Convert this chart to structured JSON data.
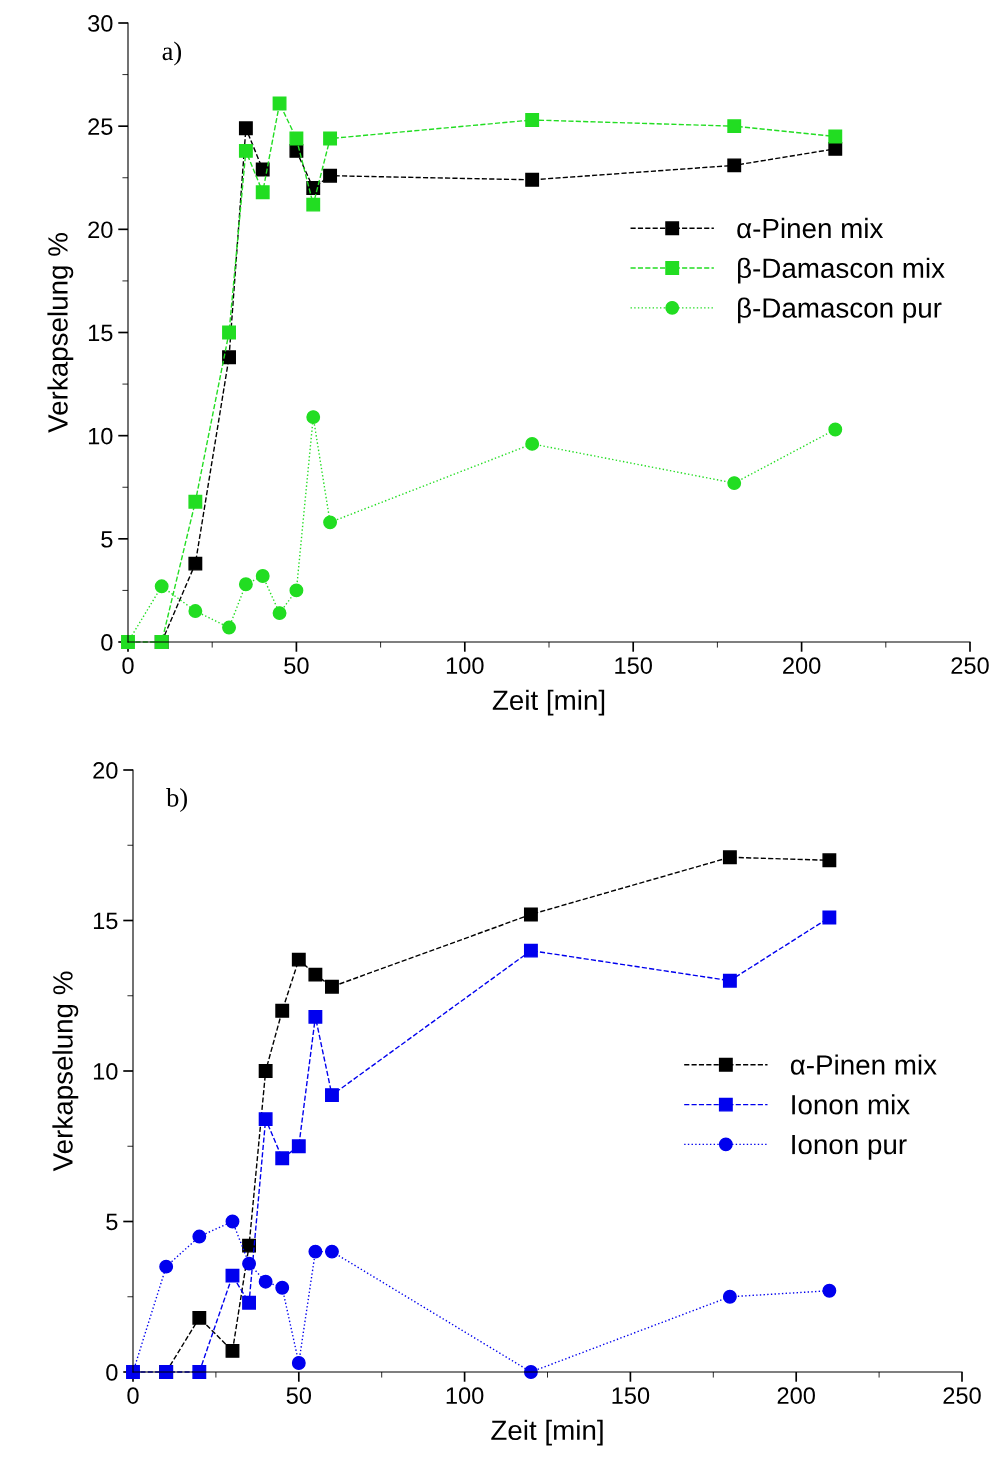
{
  "chart_data": [
    {
      "type": "line",
      "xlabel": "Zeit [min]",
      "ylabel": "Verkapselung %",
      "annotations": [
        "a)"
      ],
      "xlim": [
        0,
        250
      ],
      "xticks": [
        0,
        50,
        100,
        150,
        200,
        250
      ],
      "ylim": [
        0,
        30
      ],
      "yticks": [
        0,
        5,
        10,
        15,
        20,
        25,
        30
      ],
      "grid": false,
      "legend": "right",
      "series": [
        {
          "name": "α-Pinen mix",
          "color": "#000000",
          "marker": "square",
          "line_style": "dashed",
          "x": [
            10,
            20,
            30,
            35,
            40,
            45,
            50,
            55,
            60,
            120,
            180,
            210
          ],
          "values": [
            0,
            3.8,
            13.8,
            24.9,
            22.9,
            null,
            23.8,
            22.0,
            22.6,
            22.4,
            23.1,
            23.9
          ]
        },
        {
          "name": "β-Damascon mix",
          "color": "#22dd22",
          "marker": "square",
          "line_style": "dashed",
          "x": [
            0,
            10,
            20,
            30,
            35,
            40,
            45,
            50,
            55,
            60,
            120,
            180,
            210
          ],
          "values": [
            0,
            0,
            6.8,
            15,
            23.8,
            21.8,
            26.1,
            24.4,
            21.2,
            24.4,
            25.3,
            25.0,
            24.5
          ]
        },
        {
          "name": "β-Damascon pur",
          "color": "#22dd22",
          "marker": "circle",
          "line_style": "dotted",
          "x": [
            0,
            10,
            20,
            30,
            35,
            40,
            45,
            50,
            55,
            60,
            120,
            180,
            210
          ],
          "values": [
            0,
            2.7,
            1.5,
            0.7,
            2.8,
            3.2,
            1.4,
            2.5,
            10.9,
            5.8,
            9.6,
            7.7,
            10.3
          ]
        }
      ]
    },
    {
      "type": "line",
      "xlabel": "Zeit [min]",
      "ylabel": "Verkapselung %",
      "annotations": [
        "b)"
      ],
      "xlim": [
        0,
        250
      ],
      "xticks": [
        0,
        50,
        100,
        150,
        200,
        250
      ],
      "ylim": [
        0,
        20
      ],
      "yticks": [
        0,
        5,
        10,
        15,
        20
      ],
      "grid": false,
      "legend": "right",
      "series": [
        {
          "name": "α-Pinen mix",
          "color": "#000000",
          "marker": "square",
          "line_style": "dashed",
          "x": [
            10,
            20,
            30,
            35,
            40,
            45,
            50,
            55,
            60,
            120,
            180,
            210
          ],
          "values": [
            0,
            1.8,
            0.7,
            4.2,
            10.0,
            12.0,
            13.7,
            13.2,
            12.8,
            15.2,
            17.1,
            17.0
          ]
        },
        {
          "name": "Ionon mix",
          "color": "#0000ee",
          "marker": "square",
          "line_style": "dashed",
          "x": [
            0,
            10,
            20,
            30,
            35,
            40,
            45,
            50,
            55,
            60,
            120,
            180,
            210
          ],
          "values": [
            0,
            0,
            0,
            3.2,
            2.3,
            8.4,
            7.1,
            7.5,
            11.8,
            9.2,
            14.0,
            13.0,
            15.1
          ]
        },
        {
          "name": "Ionon pur",
          "color": "#0000ee",
          "marker": "circle",
          "line_style": "dotted",
          "x": [
            0,
            10,
            20,
            30,
            35,
            40,
            45,
            50,
            55,
            60,
            120,
            180,
            210
          ],
          "values": [
            0,
            3.5,
            4.5,
            5.0,
            3.6,
            3.0,
            2.8,
            0.3,
            4.0,
            4.0,
            0,
            2.5,
            2.7
          ]
        }
      ]
    }
  ]
}
